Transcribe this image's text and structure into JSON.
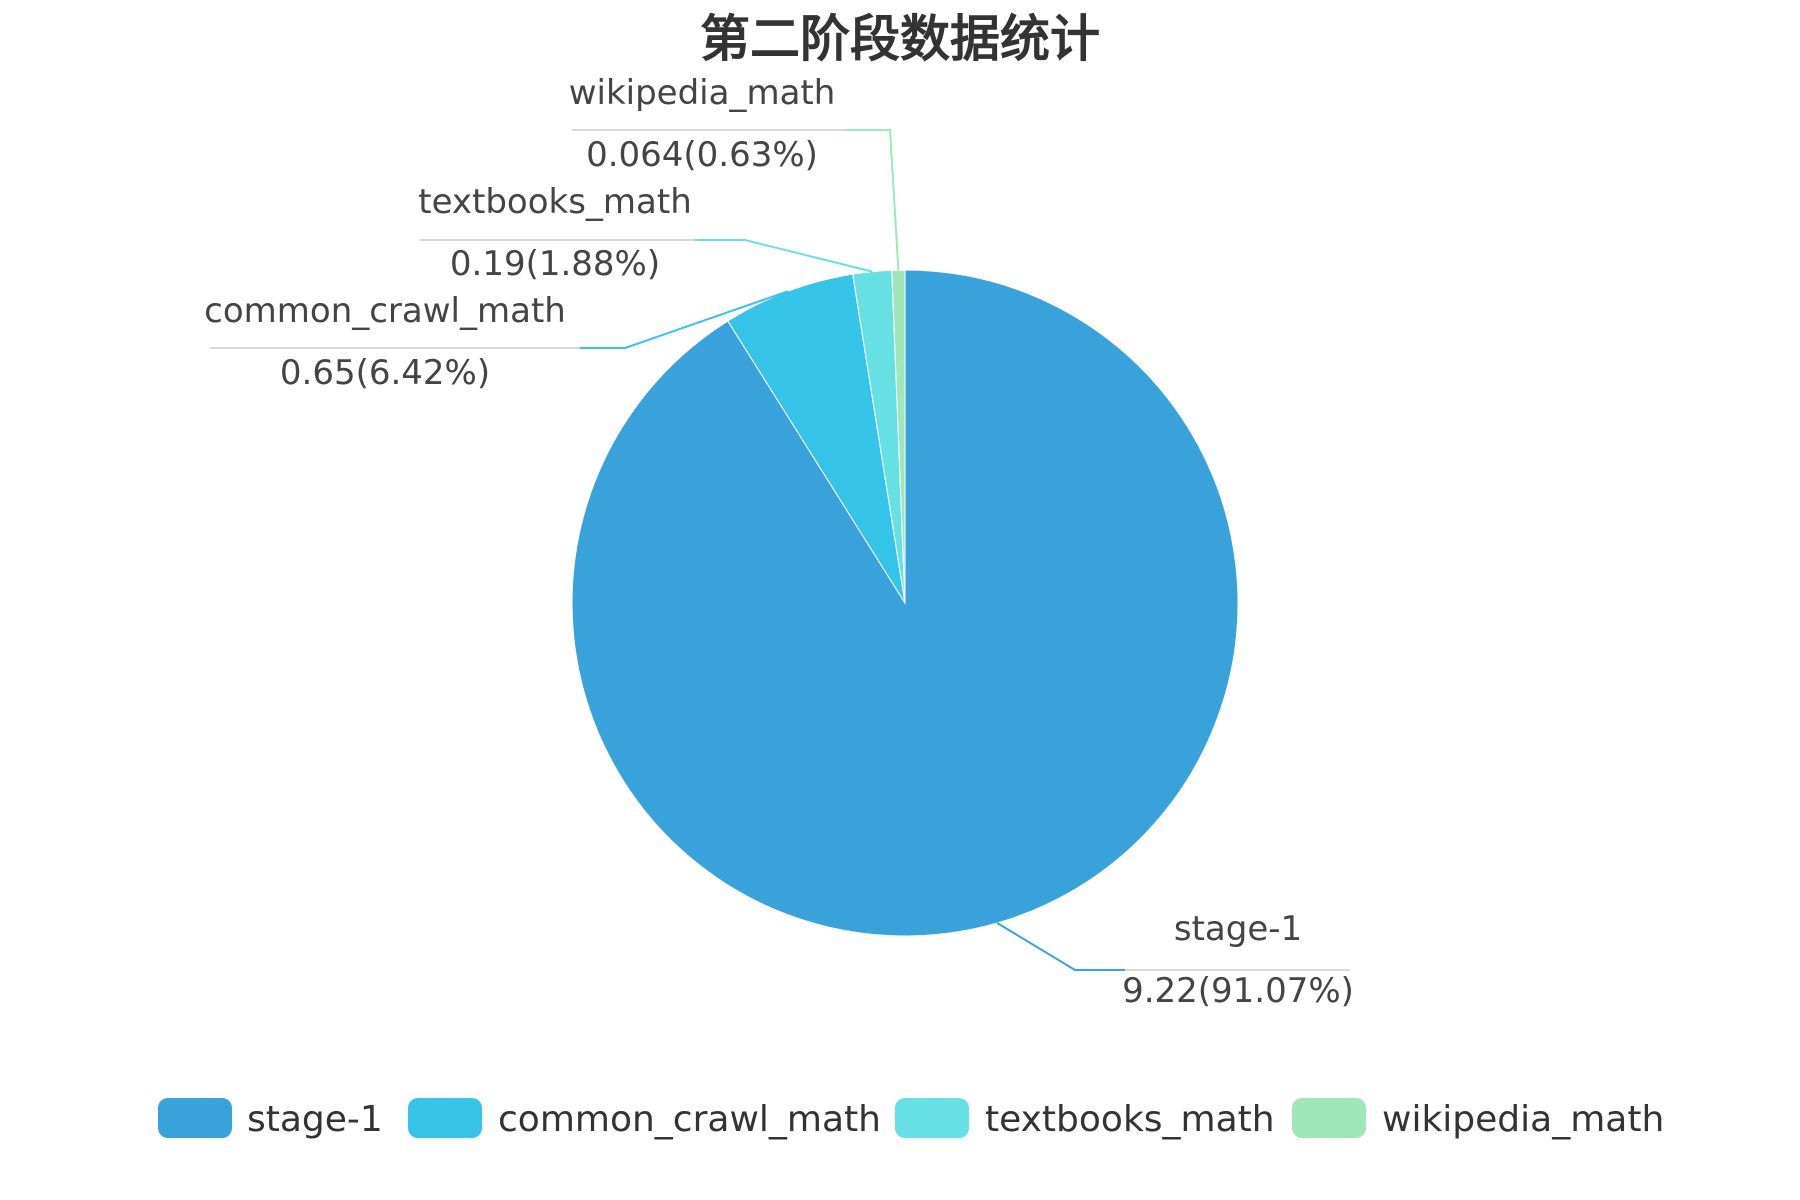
{
  "chart_data": {
    "type": "pie",
    "title": "第二阶段数据统计",
    "labels": [
      "stage-1",
      "common_crawl_math",
      "textbooks_math",
      "wikipedia_math"
    ],
    "values": [
      9.22,
      0.65,
      0.19,
      0.064
    ],
    "percent_labels": [
      "91.07%",
      "6.42%",
      "1.88%",
      "0.63%"
    ],
    "value_labels": [
      "9.22(91.07%)",
      "0.65(6.42%)",
      "0.19(1.88%)",
      "0.064(0.63%)"
    ],
    "colors": [
      "#3aa2da",
      "#36c3e8",
      "#67e0e3",
      "#9fe6b8"
    ],
    "start_angle_deg": 90,
    "direction": "clockwise",
    "legend": {
      "position": "bottom-center",
      "items": [
        "stage-1",
        "common_crawl_math",
        "textbooks_math",
        "wikipedia_math"
      ]
    }
  }
}
